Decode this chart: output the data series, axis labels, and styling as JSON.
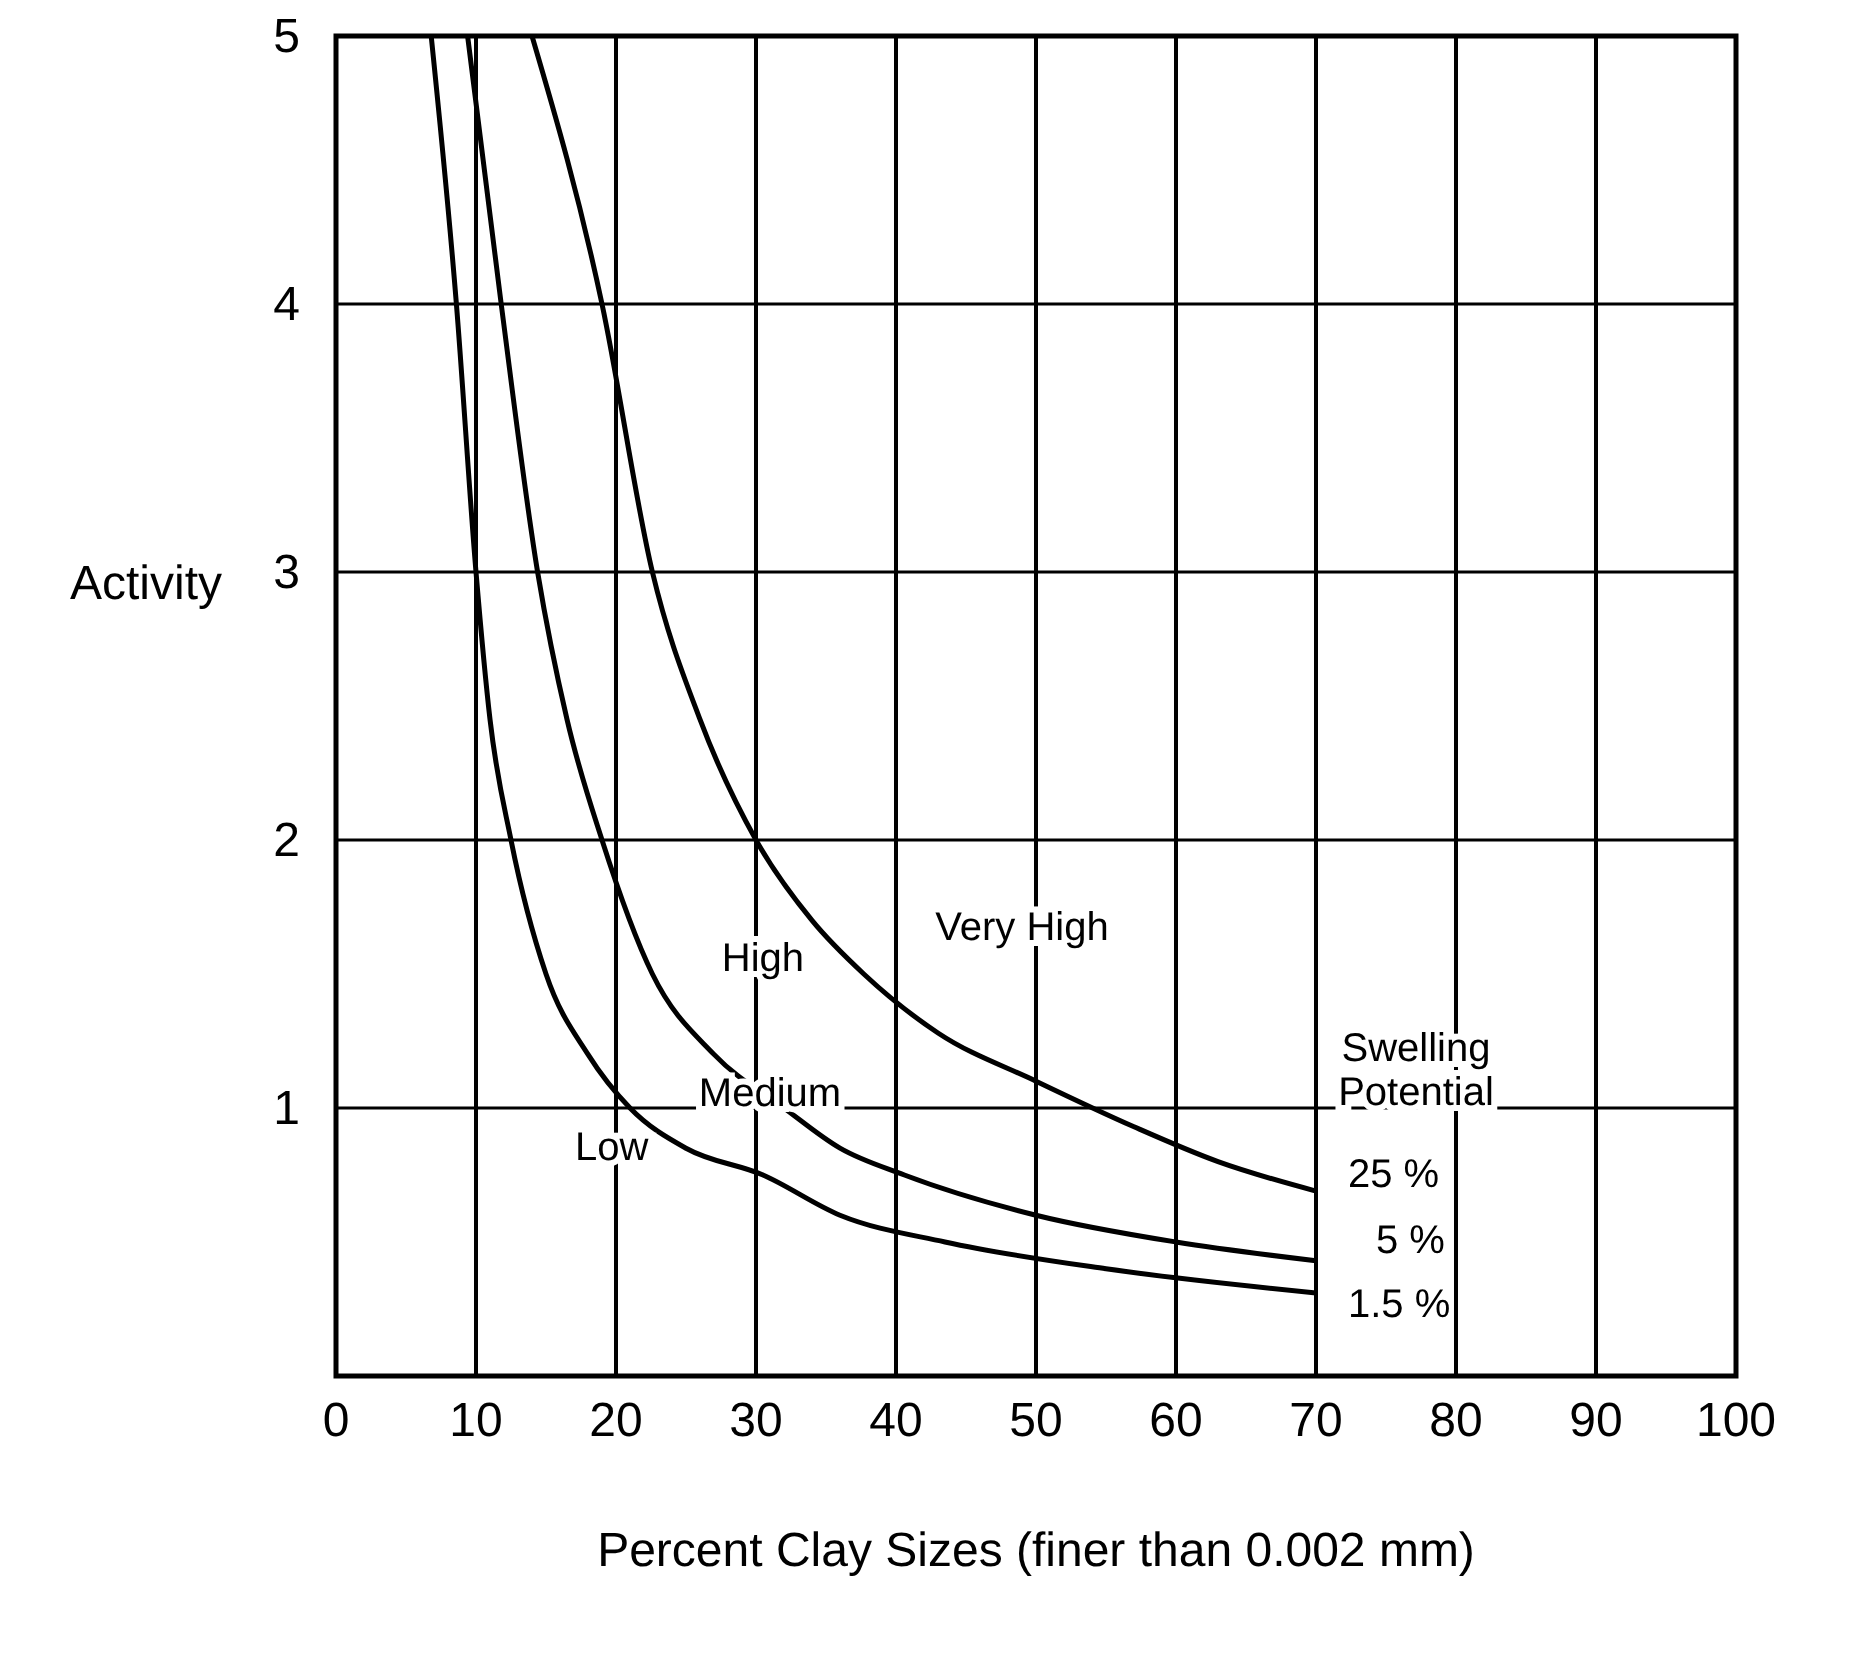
{
  "chart_data": {
    "type": "line",
    "xlabel": "Percent Clay Sizes (finer than 0.002 mm)",
    "ylabel": "Activity",
    "legend_title": "Swelling Potential",
    "xlim": [
      0,
      100
    ],
    "xticks": [
      0,
      10,
      20,
      30,
      40,
      50,
      60,
      70,
      80,
      90,
      100
    ],
    "ylim": [
      0,
      5
    ],
    "yticks": [
      1,
      2,
      3,
      4,
      5
    ],
    "grid": true,
    "line_style": "solid",
    "marker": "none",
    "series": [
      {
        "name": "25 %",
        "color": "#000000",
        "x": [
          14,
          19,
          22.6,
          26,
          30,
          34,
          37.7,
          43,
          50,
          57,
          63,
          70
        ],
        "values": [
          5,
          4,
          3,
          2.45,
          2,
          1.7,
          1.5,
          1.28,
          1.1,
          0.93,
          0.8,
          0.69
        ]
      },
      {
        "name": "5 %",
        "color": "#000000",
        "x": [
          9.4,
          11.8,
          14.4,
          16.5,
          19,
          22.6,
          27,
          32,
          36,
          40.6,
          50,
          60,
          70
        ],
        "values": [
          5,
          4,
          3,
          2.45,
          2,
          1.5,
          1.2,
          1,
          0.85,
          0.75,
          0.6,
          0.5,
          0.43
        ]
      },
      {
        "name": "1.5 %",
        "color": "#000000",
        "x": [
          6.8,
          8.6,
          10,
          11,
          12.5,
          15,
          18,
          21,
          25,
          30.5,
          36,
          43.5,
          55,
          70
        ],
        "values": [
          5,
          4,
          3,
          2.45,
          2,
          1.5,
          1.2,
          1,
          0.85,
          0.75,
          0.6,
          0.5,
          0.4,
          0.31
        ]
      }
    ],
    "annotations": [
      "Very High",
      "High",
      "Medium",
      "Low"
    ]
  }
}
